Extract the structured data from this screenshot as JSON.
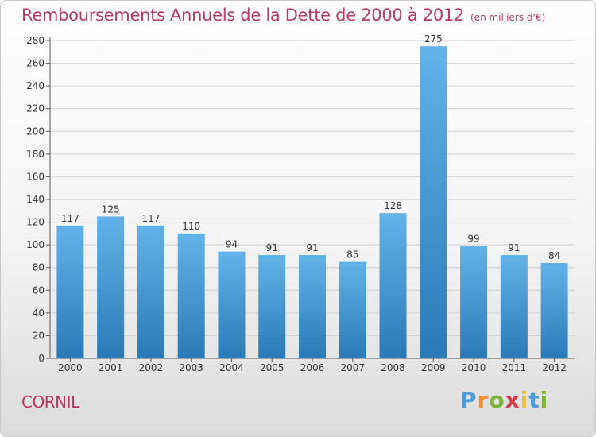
{
  "header": {
    "title": "Remboursements Annuels de la Dette de 2000 à 2012",
    "unit": "(en milliers d'€)"
  },
  "footer": {
    "commune": "CORNIL",
    "logo": [
      "P",
      "r",
      "o",
      "x",
      "i",
      "t",
      "i"
    ]
  },
  "colors": {
    "bar_top": "#62b3ea",
    "bar_bottom": "#2a7ab8",
    "title": "#b43a6a",
    "grid": "#d0d0d0"
  },
  "chart_data": {
    "type": "bar",
    "title": "Remboursements Annuels de la Dette de 2000 à 2012",
    "subtitle": "(en milliers d'€)",
    "xlabel": "",
    "ylabel": "",
    "categories": [
      "2000",
      "2001",
      "2002",
      "2003",
      "2004",
      "2005",
      "2006",
      "2007",
      "2008",
      "2009",
      "2010",
      "2011",
      "2012"
    ],
    "values": [
      117,
      125,
      117,
      110,
      94,
      91,
      91,
      85,
      128,
      275,
      99,
      91,
      84
    ],
    "ylim": [
      0,
      280
    ],
    "yticks": [
      0,
      20,
      40,
      60,
      80,
      100,
      120,
      140,
      160,
      180,
      200,
      220,
      240,
      260,
      280
    ],
    "grid": true
  }
}
